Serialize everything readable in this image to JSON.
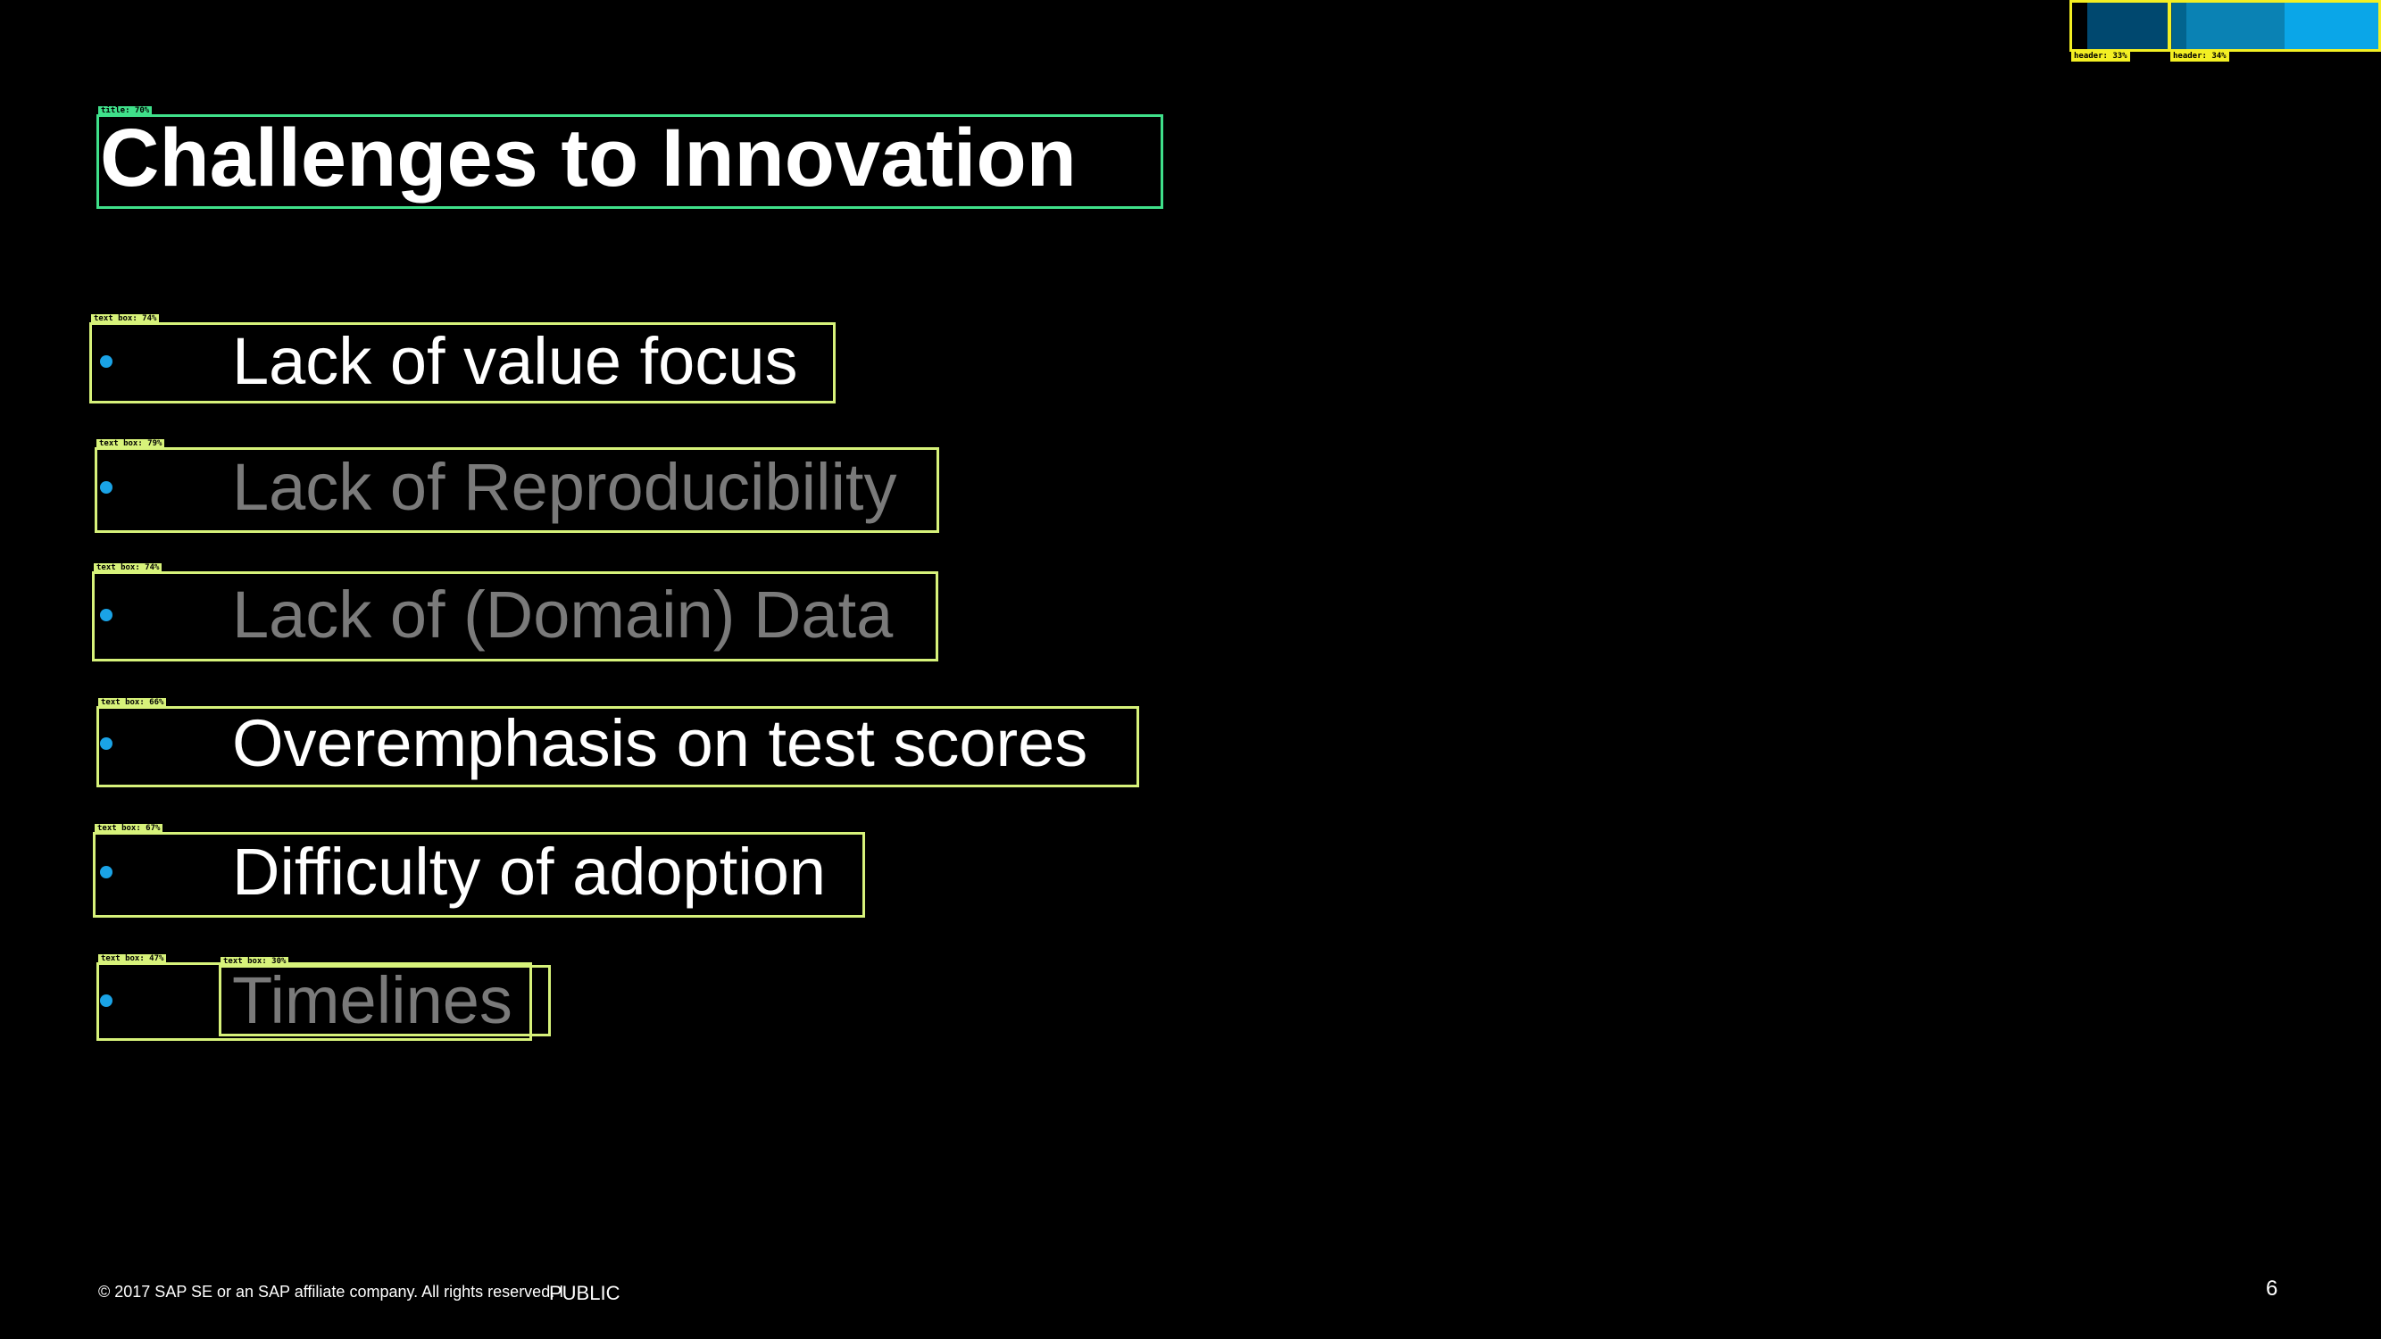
{
  "header": {
    "colors": [
      "#000000",
      "#00486f",
      "#02648f",
      "#0a82b4",
      "#0aa6e8"
    ]
  },
  "slide": {
    "title": "Challenges to Innovation",
    "bullets": [
      {
        "text": "Lack of value focus",
        "state": "active"
      },
      {
        "text": "Lack of Reproducibility",
        "state": "dim"
      },
      {
        "text": "Lack of (Domain) Data",
        "state": "dim"
      },
      {
        "text": "Overemphasis on test scores",
        "state": "active"
      },
      {
        "text": "Difficulty of adoption",
        "state": "active"
      },
      {
        "text": "Timelines",
        "state": "dim"
      }
    ]
  },
  "annotations": {
    "title_tag": "title: 70%",
    "bullet_tags": [
      "text box: 74%",
      "text box: 79%",
      "text box: 74%",
      "text box: 66%",
      "text box: 67%",
      "text box: 47%"
    ],
    "timelines_inner_tag": "text box: 30%",
    "header_tags": [
      "header: 33%",
      "header: 34%"
    ]
  },
  "footer": {
    "copyright": "© 2017 SAP SE or an SAP affiliate company. All rights reserved. I",
    "classification": "PUBLIC",
    "page_number": "6"
  }
}
